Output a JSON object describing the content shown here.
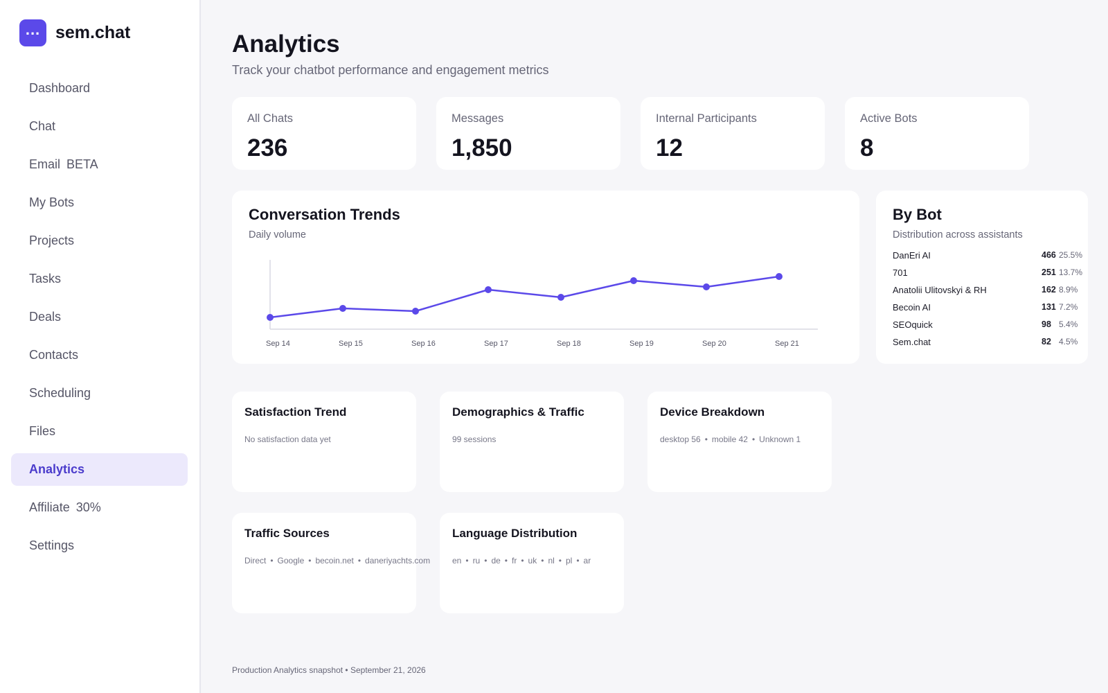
{
  "brand": {
    "logo_text": "...",
    "name": "sem.chat"
  },
  "sidebar": {
    "items": [
      {
        "label": "Dashboard",
        "badge": ""
      },
      {
        "label": "Chat",
        "badge": ""
      },
      {
        "label": "Email",
        "badge": "BETA"
      },
      {
        "label": "My Bots",
        "badge": ""
      },
      {
        "label": "Projects",
        "badge": ""
      },
      {
        "label": "Tasks",
        "badge": ""
      },
      {
        "label": "Deals",
        "badge": ""
      },
      {
        "label": "Contacts",
        "badge": ""
      },
      {
        "label": "Scheduling",
        "badge": ""
      },
      {
        "label": "Files",
        "badge": ""
      },
      {
        "label": "Analytics",
        "badge": "",
        "active": true
      },
      {
        "label": "Affiliate",
        "badge": "30%"
      },
      {
        "label": "Settings",
        "badge": ""
      }
    ]
  },
  "header": {
    "title": "Analytics",
    "subtitle": "Track your chatbot performance and engagement metrics"
  },
  "stats": [
    {
      "label": "All Chats",
      "value": "236"
    },
    {
      "label": "Messages",
      "value": "1,850"
    },
    {
      "label": "Internal Participants",
      "value": "12"
    },
    {
      "label": "Active Bots",
      "value": "8"
    }
  ],
  "trends": {
    "title": "Conversation Trends",
    "subtitle": "Daily volume"
  },
  "chart_data": {
    "type": "line",
    "title": "Conversation Trends",
    "subtitle": "Daily volume",
    "categories": [
      "Sep 14",
      "Sep 15",
      "Sep 16",
      "Sep 17",
      "Sep 18",
      "Sep 19",
      "Sep 20",
      "Sep 21"
    ],
    "values": [
      17,
      30,
      26,
      57,
      46,
      70,
      61,
      76
    ],
    "ylim": [
      0,
      100
    ],
    "grid": false,
    "color": "#5b49e9"
  },
  "by_bot": {
    "title": "By Bot",
    "subtitle": "Distribution across assistants",
    "rows": [
      {
        "name": "DanEri AI",
        "count": "466",
        "pct": "25.5%"
      },
      {
        "name": "701",
        "count": "251",
        "pct": "13.7%"
      },
      {
        "name": "Anatolii Ulitovskyi & RH",
        "count": "162",
        "pct": "8.9%"
      },
      {
        "name": "Becoin AI",
        "count": "131",
        "pct": "7.2%"
      },
      {
        "name": "SEOquick",
        "count": "98",
        "pct": "5.4%"
      },
      {
        "name": "Sem.chat",
        "count": "82",
        "pct": "4.5%"
      }
    ]
  },
  "satisfaction": {
    "title": "Satisfaction Trend",
    "text": "No satisfaction data yet"
  },
  "demographics": {
    "title": "Demographics & Traffic",
    "text": "99 sessions"
  },
  "devices": {
    "title": "Device Breakdown",
    "items": [
      "desktop 56",
      "mobile 42",
      "Unknown 1"
    ]
  },
  "traffic": {
    "title": "Traffic Sources",
    "items": [
      "Direct",
      "Google",
      "becoin.net",
      "daneriyachts.com"
    ]
  },
  "languages": {
    "title": "Language Distribution",
    "items": [
      "en",
      "ru",
      "de",
      "fr",
      "uk",
      "nl",
      "pl",
      "ar"
    ]
  },
  "footer": {
    "text": "Production Analytics snapshot • September 21, 2026"
  },
  "separator": "•",
  "colors": {
    "accent": "#5b49e9",
    "active_bg": "#ece9fc",
    "background": "#f6f6f9"
  }
}
